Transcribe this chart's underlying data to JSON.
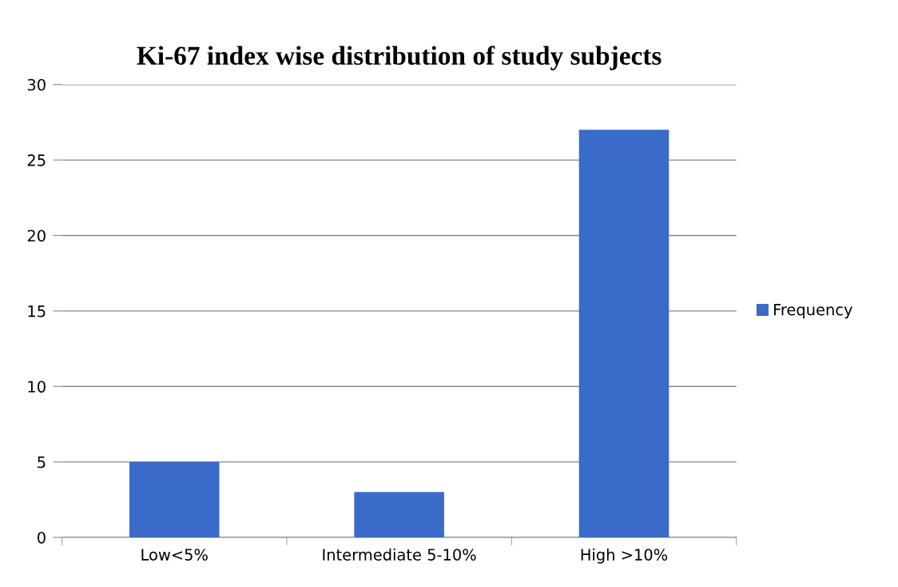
{
  "chart_data": {
    "type": "bar",
    "title": "Ki-67 index wise distribution of study subjects",
    "categories": [
      "Low<5%",
      "Intermediate 5-10%",
      "High >10%"
    ],
    "series": [
      {
        "name": "Frequency",
        "color": "#3a6bc8",
        "values": [
          5,
          3,
          27
        ]
      }
    ],
    "ylim": [
      0,
      30
    ],
    "yticks": [
      0,
      5,
      10,
      15,
      20,
      25,
      30
    ],
    "grid": "y",
    "legend": "right"
  }
}
